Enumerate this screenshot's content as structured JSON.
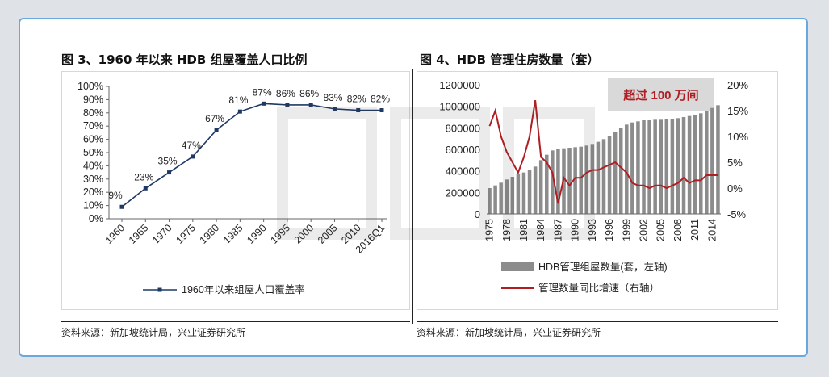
{
  "left_panel": {
    "title": "图 3、1960 年以来 HDB 组屋覆盖人口比例",
    "source": "资料来源：新加坡统计局，兴业证券研究所"
  },
  "right_panel": {
    "title": "图 4、HDB 管理住房数量（套）",
    "source": "资料来源：新加坡统计局，兴业证券研究所",
    "callout": "超过 100 万间"
  },
  "colors": {
    "line_blue": "#1f3864",
    "bar_gray": "#8c8c8c",
    "line_red": "#b01e23",
    "frame_blue": "#6aa7dc"
  },
  "chart_data": [
    {
      "type": "line",
      "title": "图 3、1960 年以来 HDB 组屋覆盖人口比例",
      "categories": [
        "1960",
        "1965",
        "1970",
        "1975",
        "1980",
        "1985",
        "1990",
        "1995",
        "2000",
        "2005",
        "2010",
        "2016Q1"
      ],
      "series": [
        {
          "name": "1960年以来组屋人口覆盖率",
          "values": [
            9,
            23,
            35,
            47,
            67,
            81,
            87,
            86,
            86,
            83,
            82,
            82
          ],
          "labels": [
            "9%",
            "23%",
            "35%",
            "47%",
            "67%",
            "81%",
            "87%",
            "86%",
            "86%",
            "83%",
            "82%",
            "82%"
          ]
        }
      ],
      "ylim": [
        0,
        100
      ],
      "yticks": [
        "0%",
        "10%",
        "20%",
        "30%",
        "40%",
        "50%",
        "60%",
        "70%",
        "80%",
        "90%",
        "100%"
      ],
      "legend": "bottom"
    },
    {
      "type": "bar",
      "title": "图 4、HDB 管理住房数量（套）",
      "x": [
        1975,
        1976,
        1977,
        1978,
        1979,
        1980,
        1981,
        1982,
        1983,
        1984,
        1985,
        1986,
        1987,
        1988,
        1989,
        1990,
        1991,
        1992,
        1993,
        1994,
        1995,
        1996,
        1997,
        1998,
        1999,
        2000,
        2001,
        2002,
        2003,
        2004,
        2005,
        2006,
        2007,
        2008,
        2009,
        2010,
        2011,
        2012,
        2013,
        2014,
        2015
      ],
      "xticks": [
        "1975",
        "1978",
        "1981",
        "1984",
        "1987",
        "1990",
        "1993",
        "1996",
        "1999",
        "2002",
        "2005",
        "2008",
        "2011",
        "2014"
      ],
      "series": [
        {
          "name": "HDB管理组屋数量(套，左轴)",
          "type": "bar",
          "axis": "left",
          "values": [
            240000,
            265000,
            290000,
            320000,
            345000,
            370000,
            385000,
            405000,
            440000,
            500000,
            550000,
            590000,
            605000,
            610000,
            615000,
            620000,
            625000,
            635000,
            650000,
            670000,
            695000,
            720000,
            760000,
            800000,
            830000,
            850000,
            860000,
            870000,
            870000,
            875000,
            875000,
            880000,
            885000,
            890000,
            900000,
            910000,
            920000,
            935000,
            960000,
            985000,
            1010000
          ]
        },
        {
          "name": "管理数量同比增速（右轴）",
          "type": "line",
          "axis": "right",
          "values": [
            12,
            15,
            10,
            7,
            5,
            3,
            6,
            10,
            17,
            6,
            5,
            3,
            -3,
            2,
            0.5,
            2,
            2,
            3,
            3.5,
            3.5,
            4,
            4.5,
            5,
            4,
            3,
            1,
            0.5,
            0.5,
            0,
            0.5,
            0.5,
            0,
            0.5,
            1,
            2,
            1,
            1.5,
            1.5,
            2.5,
            2.5,
            2.5
          ]
        }
      ],
      "ylim_left": [
        0,
        1200000
      ],
      "yticks_left": [
        "0",
        "200000",
        "400000",
        "600000",
        "800000",
        "1000000",
        "1200000"
      ],
      "ylim_right": [
        -5,
        20
      ],
      "yticks_right": [
        "-5%",
        "0%",
        "5%",
        "10%",
        "15%",
        "20%"
      ],
      "legend": "bottom"
    }
  ]
}
